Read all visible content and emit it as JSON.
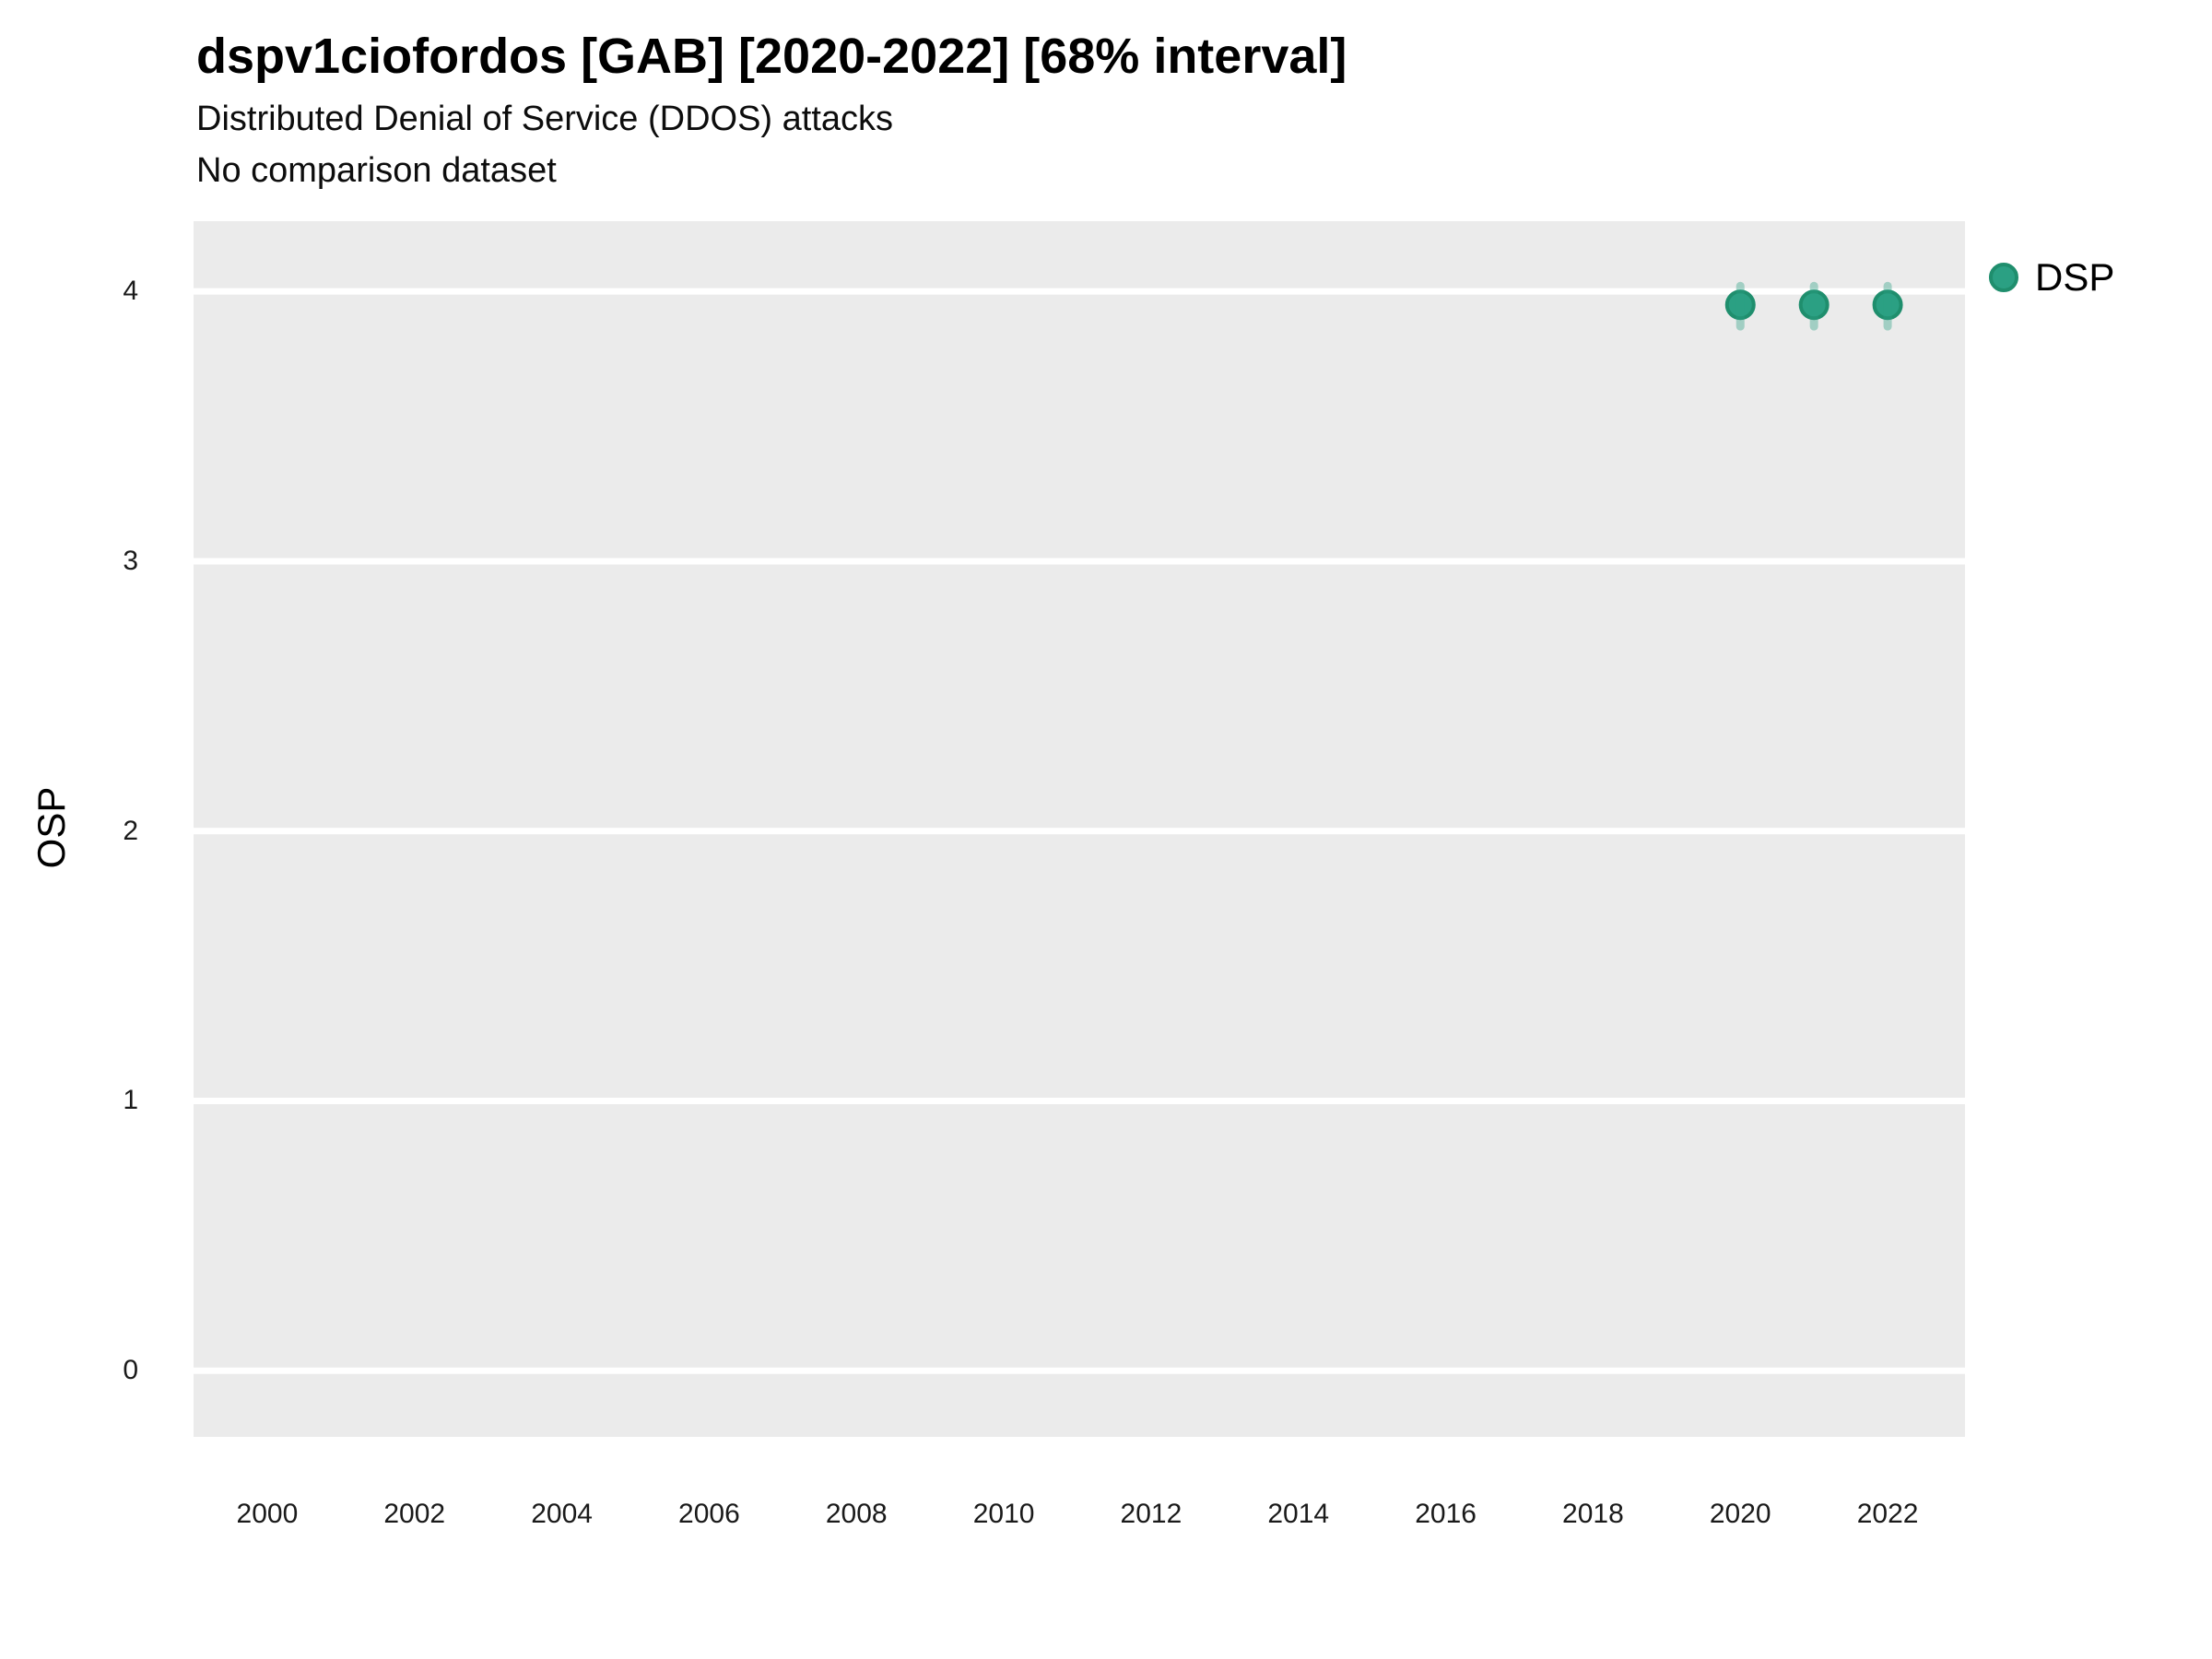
{
  "chart_data": {
    "type": "scatter",
    "title": "dspv1ciofordos [GAB] [2020-2022] [68% interval]",
    "subtitle": "Distributed Denial of Service (DDOS) attacks",
    "note": "No comparison dataset",
    "xlabel": "",
    "ylabel": "OSP",
    "interval_label": "68% interval",
    "xlim": [
      1999.0,
      2023.05
    ],
    "ylim": [
      -0.245,
      4.26
    ],
    "x_ticks": [
      "2000",
      "2002",
      "2004",
      "2006",
      "2008",
      "2010",
      "2012",
      "2014",
      "2016",
      "2018",
      "2020",
      "2022"
    ],
    "y_ticks": [
      "0",
      "1",
      "2",
      "3",
      "4"
    ],
    "grid": {
      "horizontal_major": true,
      "vertical": false,
      "minor": false
    },
    "legend_position": "right",
    "colors": {
      "panel_bg": "#EBEBEB",
      "gridline": "#FFFFFF",
      "title_text": "#000000",
      "tick_text": "#1A1A1A",
      "point_fill": "#2BA083",
      "point_stroke": "#1F8E6D"
    },
    "series": [
      {
        "name": "DSP",
        "color": "#2BA083",
        "stroke_color": "#1F8E6D",
        "points": [
          {
            "x": 2020,
            "y": 3.95,
            "lo": 3.87,
            "hi": 4.02
          },
          {
            "x": 2021,
            "y": 3.95,
            "lo": 3.87,
            "hi": 4.02
          },
          {
            "x": 2022,
            "y": 3.95,
            "lo": 3.87,
            "hi": 4.02
          }
        ]
      }
    ]
  }
}
